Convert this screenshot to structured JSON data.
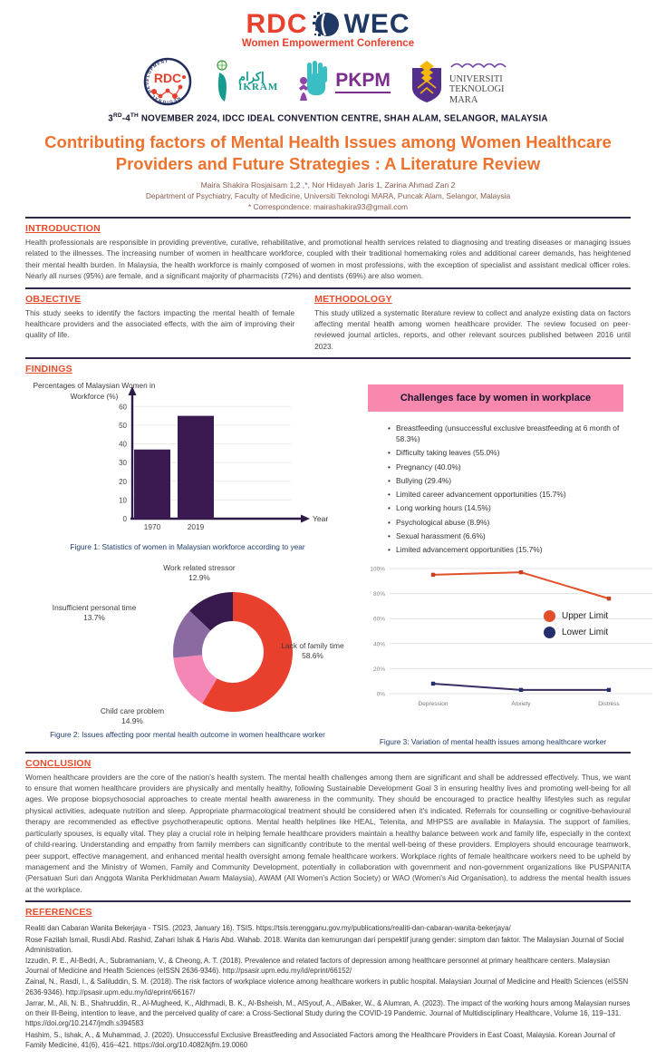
{
  "header": {
    "logo_rdc": "RDC",
    "logo_wec": "WEC",
    "logo_subtitle": "Women Empowerment Conference",
    "rdc_badge_text": "RDC",
    "rdc_badge_ring": "REGIONAL DEVELOPMENT COMMUNITY",
    "ikram_arabic": "إكرام",
    "ikram_en": "IKRAM",
    "pkpm": "PKPM",
    "uitm_line1": "UNIVERSITI",
    "uitm_line2": "TEKNOLOGI",
    "uitm_line3": "MARA",
    "event": {
      "d1": "3",
      "s1": "RD",
      "d2": "-4",
      "s2": "TH",
      "rest": " NOVEMBER 2024, IDCC IDEAL CONVENTION CENTRE, SHAH ALAM, SELANGOR, MALAYSIA"
    }
  },
  "title": "Contributing factors of Mental Health Issues among Women Healthcare Providers and Future Strategies : A Literature Review",
  "authors": "Maira Shakira Rosjaisam 1,2 ,*, Nor Hidayah Jaris 1, Zarina Ahmad Zan 2",
  "affiliation": "Department of Psychiatry, Faculty of Medicine, Universiti Teknologi MARA, Puncak Alam, Selangor, Malaysia",
  "correspondence": "* Correspondence: mairashakira93@gmail.com",
  "sections": {
    "introduction": {
      "heading": "INTRODUCTION",
      "body": "Health professionals are responsible in providing preventive, curative, rehabilitative, and promotional health services related to diagnosing and treating diseases or managing issues related to the illnesses. The increasing number of women in healthcare workforce, coupled with their traditional homemaking roles and additional career demands, has heightened their mental health burden. In Malaysia, the health workforce is mainly composed of women in most professions, with the exception of specialist and assistant medical officer roles. Nearly all nurses (95%) are female, and a significant majority of pharmacists (72%) and dentists (69%) are also women."
    },
    "objective": {
      "heading": "OBJECTIVE",
      "body": "This study seeks to identify the factors impacting the mental health of female healthcare providers and the associated effects, with the aim of improving their quality of life."
    },
    "methodology": {
      "heading": "METHODOLOGY",
      "body": "This study utilized a systematic literature review to collect and analyze existing data on factors affecting mental health among women healthcare provider. The review focused on peer-reviewed journal articles, reports, and other relevant sources published between 2016 until 2023."
    },
    "findings": {
      "heading": "FINDINGS"
    },
    "conclusion": {
      "heading": "CONCLUSION",
      "body": "Women healthcare providers are the core of the nation's health system. The mental health challenges among them are significant and shall be addressed effectively. Thus, we want to ensure that women healthcare providers are physically and mentally healthy, following Sustainable Development Goal 3 in ensuring healthy lives and promoting well-being for all ages. We propose biopsychosocial approaches to create mental health awareness in the community. They should be encouraged to practice healthy lifestyles such as regular physical activities, adequate nutrition and sleep. Appropriate pharmacological treatment should be considered when it's indicated. Referrals for counselling or cognitive-behavioural therapy are recommended as effective psychotherapeutic options. Mental health helplines like HEAL, Telenita, and MHPSS are available in Malaysia. The support of families, particularly spouses, is equally vital. They play a crucial role in helping female healthcare providers maintain a healthy balance between work and family life, especially in the context of child-rearing. Understanding and empathy from family members can significantly contribute to the mental well-being of these providers. Employers should encourage teamwork, peer support, effective management, and enhanced mental health oversight among female healthcare workers. Workplace rights of female healthcare workers need to be upheld by management and the Ministry of Women, Family and Community Development, potentially in collaboration with government and non-government organizations like PUSPANITA (Persatuan Suri dan Anggota Wanita Perkhidmatan Awam Malaysia), AWAM (All Women's Action Society) or WAO (Women's Aid Organisation), to address the mental health issues at the workplace."
    },
    "references": {
      "heading": "REFERENCES",
      "items": [
        "Realiti dan Cabaran Wanita Bekerjaya - TSIS. (2023, January 16). TSIS. https://tsis.terengganu.gov.my/publications/realiti-dan-cabaran-wanita-bekerjaya/",
        "Rose Fazilah Ismail, Rusdi Abd. Rashid, Zahari Ishak & Haris Abd. Wahab. 2018. Wanita dan kemurungan dari perspektif jurang gender: simptom dan faktor. The Malaysian Journal of Social Administration.",
        "Izzudin, P. E., Al-Bedri, A., Subramaniam, V., & Cheong, A. T. (2018). Prevalence and related factors of depression among healthcare personnel at primary healthcare centers. Malaysian Journal of Medicine and Health Sciences (eISSN 2636-9346). http://psasir.upm.edu.my/id/eprint/66152/",
        "Zainal, N., Rasdi, I., & Saliluddin, S. M. (2018). The risk factors of workplace violence among healthcare workers in public hospital. Malaysian Journal of Medicine and Health Sciences (eISSN 2636-9346). http://psasir.upm.edu.my/id/eprint/66167/",
        "Jarrar, M., Ali, N. B., Shahruddin, R., Al-Mugheed, K., Aldhmadi, B. K., Al-Bsheish, M., AlSyouf, A., AlBaker, W., & Alumran, A. (2023). The impact of the working hours among Malaysian nurses on their Ill-Being, intention to leave, and the perceived quality of care: a Cross-Sectional Study during the COVID-19 Pandemic. Journal of Multidisciplinary Healthcare, Volume 16, 119–131. https://doi.org/10.2147/jmdh.s394583",
        "Hashim, S., Ishak, A., & Muhammad, J. (2020). Unsuccessful Exclusive Breastfeeding and Associated Factors among the Healthcare Providers in East Coast, Malaysia. Korean Journal of Family Medicine, 41(6), 416–421. https://doi.org/10.4082/kjfm.19.0060"
      ]
    }
  },
  "challenges": {
    "title": "Challenges face by women in workplace",
    "items": [
      "Breastfeeding (unsuccessful exclusive breastfeeding at 6 month of 58.3%)",
      "Difficulty taking leaves (55.0%)",
      "Pregnancy (40.0%)",
      "Bullying (29.4%)",
      "Limited career advancement opportunities (15.7%)",
      "Long working hours (14.5%)",
      "Psychological abuse (8.9%)",
      "Sexual harassment (6.6%)",
      "Limited advancement opportunities (15.7%)"
    ]
  },
  "figures": {
    "fig1_caption": "Figure 1: Statistics of women in Malaysian workforce according to year",
    "fig2_caption": "Figure 2: Issues affecting poor mental health outcome in women healthcare worker",
    "fig3_caption": "Figure 3: Variation of mental health issues among healthcare worker"
  },
  "chart_data": [
    {
      "id": "fig1",
      "type": "bar",
      "title": "Percentages of Malaysian Women in Workforce (%)",
      "categories": [
        "1970",
        "2019"
      ],
      "values": [
        37,
        55
      ],
      "xlabel": "Year",
      "ylabel": "Percentages of Malaysian Women in Workforce (%)",
      "ylim": [
        0,
        65
      ],
      "yticks": [
        0,
        10,
        20,
        30,
        40,
        50,
        60
      ],
      "bar_color": "#3B1A52",
      "axis_color": "#2E1A47"
    },
    {
      "id": "fig2",
      "type": "pie",
      "donut": true,
      "slices": [
        {
          "label": "Lack of family time",
          "value": 58.6,
          "pct": "58.6%",
          "color": "#E8402C"
        },
        {
          "label": "Child care problem",
          "value": 14.9,
          "pct": "14.9%",
          "color": "#F587B6"
        },
        {
          "label": "Insufficient personal time",
          "value": 13.7,
          "pct": "13.7%",
          "color": "#8A6AA0"
        },
        {
          "label": "Work related stressor",
          "value": 12.9,
          "pct": "12.9%",
          "color": "#38194E"
        }
      ]
    },
    {
      "id": "fig3",
      "type": "line",
      "categories": [
        "Depression",
        "Anxiety",
        "Distress"
      ],
      "series": [
        {
          "name": "Upper Limit",
          "values": [
            95,
            97,
            76
          ],
          "color": "#E0502A",
          "marker": "#C8401E"
        },
        {
          "name": "Lower Limit",
          "values": [
            8,
            3,
            3
          ],
          "color": "#3A2D62",
          "marker": "#24306B"
        }
      ],
      "ylim": [
        0,
        100
      ],
      "yticks": [
        0,
        20,
        40,
        60,
        80,
        100
      ],
      "ytick_labels": [
        "0%",
        "20%",
        "40%",
        "60%",
        "80%",
        "100%"
      ],
      "legend_position": "middle-right",
      "grid": true
    }
  ],
  "colors": {
    "heading_red": "#E84C2B",
    "title_orange": "#ED722E",
    "divider": "#35284E",
    "pink_box": "#F888AE",
    "caption_navy": "#1F3C6E",
    "logo_red": "#E8402C",
    "logo_navy": "#1F3864",
    "ikram_teal": "#169B8F",
    "pkpm_purple": "#7B2D8B",
    "pkpm_teal": "#39BEC4",
    "uitm_purple": "#532E8C",
    "uitm_gold": "#F5B80C"
  }
}
